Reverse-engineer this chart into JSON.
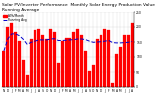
{
  "title": "Solar PV/Inverter Performance  Monthly Solar Energy Production Value  Running Average",
  "months": [
    "N",
    "D",
    "J",
    "F",
    "M",
    "A",
    "M",
    "J",
    "J",
    "A",
    "S",
    "O",
    "N",
    "D",
    "J",
    "F",
    "M",
    "A",
    "M",
    "J",
    "J",
    "A",
    "S",
    "O",
    "N",
    "D",
    "J",
    "F",
    "M",
    "A",
    "M",
    "J",
    "J",
    "A"
  ],
  "values": [
    120,
    200,
    215,
    185,
    155,
    90,
    40,
    160,
    190,
    195,
    175,
    160,
    195,
    185,
    80,
    155,
    165,
    165,
    185,
    195,
    175,
    120,
    55,
    75,
    160,
    175,
    195,
    190,
    15,
    110,
    135,
    175,
    175,
    215
  ],
  "running_avg": [
    120,
    160,
    177,
    177,
    171,
    159,
    142,
    149,
    153,
    157,
    157,
    157,
    160,
    161,
    155,
    155,
    156,
    157,
    158,
    160,
    160,
    158,
    153,
    149,
    150,
    151,
    153,
    155,
    148,
    147,
    147,
    148,
    149,
    152
  ],
  "bar_color": "#ff0000",
  "avg_color": "#0000cc",
  "bg_color": "#ffffff",
  "grid_color": "#888888",
  "ylim": [
    0,
    250
  ],
  "yticks": [
    0,
    50,
    100,
    150,
    200,
    250
  ],
  "ytick_labels": [
    "0",
    "50",
    "100",
    "150",
    "200",
    "250"
  ],
  "legend_bar": "kWh/Month",
  "legend_avg": "Running Avg",
  "title_fontsize": 3.2,
  "tick_fontsize": 2.2
}
